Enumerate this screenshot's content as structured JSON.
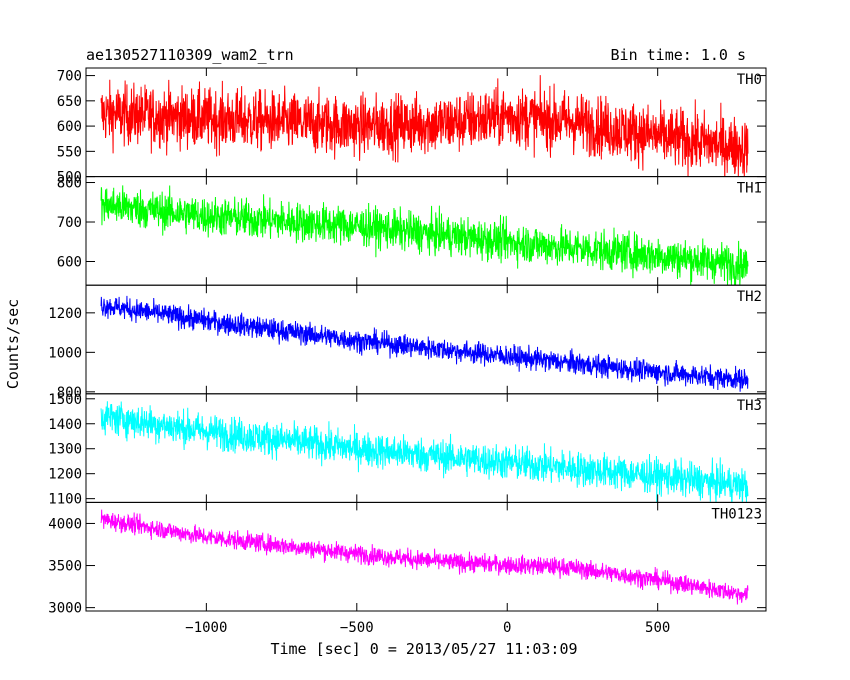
{
  "header": {
    "title": "ae130527110309_wam2_trn",
    "bin_time": "Bin time: 1.0 s"
  },
  "chart_data": {
    "type": "line",
    "title": "ae130527110309_wam2_trn",
    "subtitle": "Bin time: 1.0 s",
    "xlabel": "Time [sec] 0 = 2013/05/27 11:03:09",
    "ylabel": "Counts/sec",
    "xlim": [
      -1400,
      860
    ],
    "x_range_data": [
      -1350,
      800
    ],
    "x_ticks": [
      -1000,
      -500,
      0,
      500
    ],
    "x_tick_labels": [
      "−1000",
      "−500",
      "0",
      "500"
    ],
    "grid": false,
    "legend": "none",
    "panels": [
      {
        "name": "TH0",
        "color": "#ff0000",
        "ylim": [
          500,
          715
        ],
        "y_ticks": [
          500,
          550,
          600,
          650,
          700
        ],
        "trend": [
          [
            -1350,
            625
          ],
          [
            -1000,
            615
          ],
          [
            -500,
            600
          ],
          [
            -200,
            605
          ],
          [
            0,
            620
          ],
          [
            200,
            610
          ],
          [
            500,
            580
          ],
          [
            800,
            555
          ]
        ],
        "noise": 30
      },
      {
        "name": "TH1",
        "color": "#00ff00",
        "ylim": [
          540,
          815
        ],
        "y_ticks": [
          600,
          700,
          800
        ],
        "trend": [
          [
            -1350,
            745
          ],
          [
            -1000,
            715
          ],
          [
            -500,
            690
          ],
          [
            0,
            650
          ],
          [
            500,
            615
          ],
          [
            800,
            590
          ]
        ],
        "noise": 25
      },
      {
        "name": "TH2",
        "color": "#0000ff",
        "ylim": [
          790,
          1340
        ],
        "y_ticks": [
          800,
          1000,
          1200
        ],
        "trend": [
          [
            -1350,
            1240
          ],
          [
            -1000,
            1160
          ],
          [
            -500,
            1060
          ],
          [
            0,
            980
          ],
          [
            500,
            900
          ],
          [
            800,
            860
          ]
        ],
        "noise": 28
      },
      {
        "name": "TH3",
        "color": "#00ffff",
        "ylim": [
          1085,
          1520
        ],
        "y_ticks": [
          1100,
          1200,
          1300,
          1400,
          1500
        ],
        "trend": [
          [
            -1350,
            1430
          ],
          [
            -1000,
            1370
          ],
          [
            -500,
            1300
          ],
          [
            0,
            1245
          ],
          [
            500,
            1190
          ],
          [
            800,
            1150
          ]
        ],
        "noise": 35
      },
      {
        "name": "TH0123",
        "color": "#ff00ff",
        "ylim": [
          2960,
          4250
        ],
        "y_ticks": [
          3000,
          3500,
          4000
        ],
        "trend": [
          [
            -1350,
            4050
          ],
          [
            -1000,
            3840
          ],
          [
            -500,
            3640
          ],
          [
            -200,
            3540
          ],
          [
            0,
            3510
          ],
          [
            200,
            3480
          ],
          [
            500,
            3330
          ],
          [
            800,
            3150
          ]
        ],
        "noise": 55
      }
    ]
  }
}
